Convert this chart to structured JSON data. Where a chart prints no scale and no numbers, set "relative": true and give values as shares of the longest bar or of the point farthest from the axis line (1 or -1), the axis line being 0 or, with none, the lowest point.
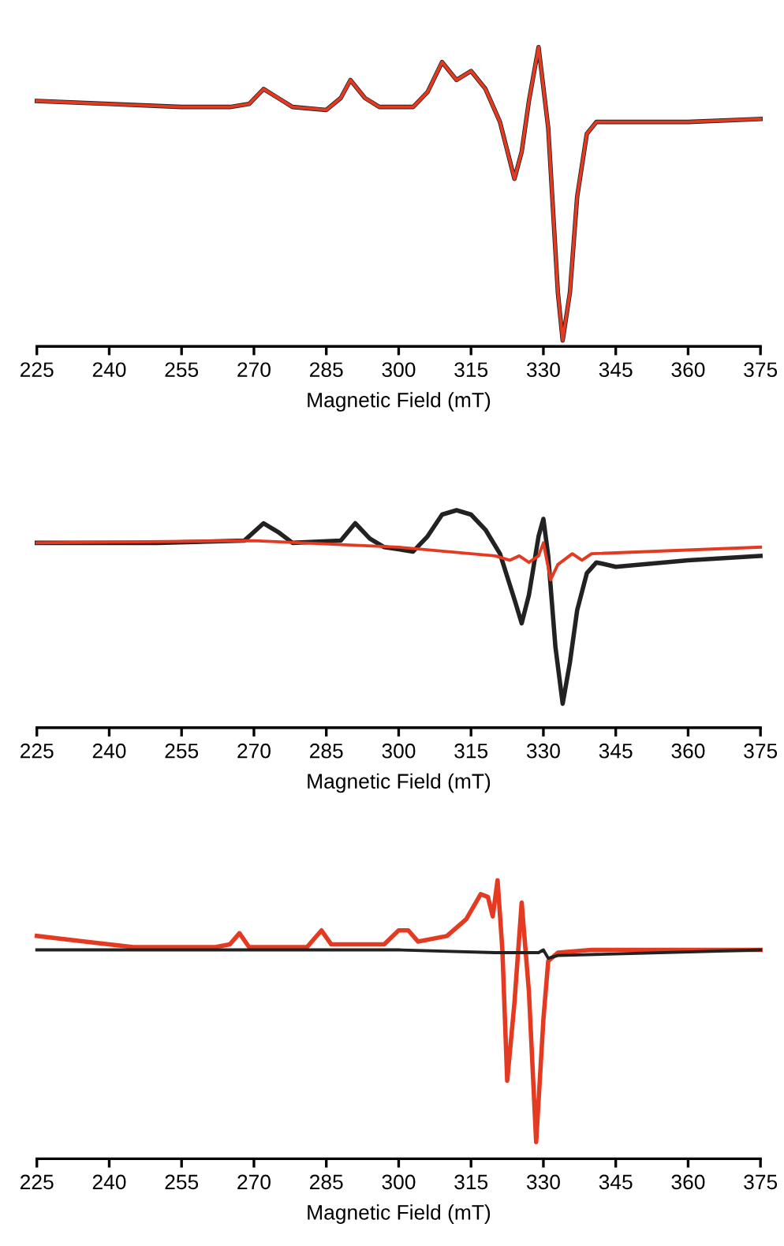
{
  "chart_data": [
    {
      "type": "line",
      "relative": true,
      "xlabel": "Magnetic Field (mT)",
      "xlim": [
        225,
        375
      ],
      "xticks": [
        225,
        240,
        255,
        270,
        285,
        300,
        315,
        330,
        345,
        360,
        375
      ],
      "tick_labels": "x",
      "series": [
        {
          "color": "#222222",
          "x": [
            225,
            240,
            255,
            265,
            269,
            272,
            275,
            278,
            285,
            288,
            290,
            293,
            296,
            303,
            306,
            309,
            312,
            315,
            318,
            321,
            324,
            325.5,
            327,
            329,
            331,
            333,
            334,
            335.5,
            337,
            339,
            341,
            345,
            360,
            375
          ],
          "values": [
            0.82,
            0.81,
            0.8,
            0.8,
            0.81,
            0.86,
            0.83,
            0.8,
            0.79,
            0.83,
            0.89,
            0.83,
            0.8,
            0.8,
            0.85,
            0.95,
            0.89,
            0.92,
            0.86,
            0.75,
            0.56,
            0.65,
            0.82,
            1.0,
            0.73,
            0.18,
            0.02,
            0.18,
            0.5,
            0.71,
            0.75,
            0.75,
            0.75,
            0.76
          ]
        },
        {
          "color": "#e53a22",
          "x": [
            225,
            240,
            255,
            265,
            269,
            272,
            275,
            278,
            285,
            288,
            290,
            293,
            296,
            303,
            306,
            309,
            312,
            315,
            318,
            321,
            324,
            325.5,
            327,
            329,
            331,
            333,
            334,
            335.5,
            337,
            339,
            341,
            345,
            360,
            375
          ],
          "values": [
            0.82,
            0.81,
            0.8,
            0.8,
            0.81,
            0.86,
            0.83,
            0.8,
            0.79,
            0.83,
            0.89,
            0.83,
            0.8,
            0.8,
            0.85,
            0.95,
            0.89,
            0.92,
            0.86,
            0.75,
            0.56,
            0.65,
            0.82,
            1.0,
            0.73,
            0.18,
            0.02,
            0.18,
            0.5,
            0.71,
            0.75,
            0.75,
            0.75,
            0.76
          ]
        }
      ]
    },
    {
      "type": "line",
      "relative": true,
      "xlabel": "Magnetic Field (mT)",
      "xlim": [
        225,
        375
      ],
      "xticks": [
        225,
        240,
        255,
        270,
        285,
        300,
        315,
        330,
        345,
        360,
        375
      ],
      "tick_labels": "x",
      "series": [
        {
          "color": "#222222",
          "x": [
            225,
            250,
            268,
            272,
            275,
            278,
            288,
            291,
            294,
            297,
            303,
            306,
            309,
            312,
            315,
            318,
            321,
            324,
            325.5,
            327,
            329,
            330,
            331,
            332.5,
            334,
            335.5,
            337,
            339,
            341,
            345,
            360,
            375
          ],
          "values": [
            0.85,
            0.85,
            0.86,
            0.94,
            0.9,
            0.85,
            0.86,
            0.94,
            0.87,
            0.83,
            0.81,
            0.88,
            0.98,
            1.0,
            0.98,
            0.91,
            0.8,
            0.59,
            0.48,
            0.61,
            0.88,
            0.96,
            0.79,
            0.37,
            0.11,
            0.3,
            0.54,
            0.71,
            0.76,
            0.74,
            0.77,
            0.79
          ]
        },
        {
          "color": "#e53a22",
          "x": [
            225,
            270,
            300,
            320,
            323,
            325,
            327,
            329,
            330,
            331.5,
            333,
            336,
            338,
            340,
            375
          ],
          "values": [
            0.85,
            0.86,
            0.83,
            0.79,
            0.77,
            0.79,
            0.76,
            0.79,
            0.85,
            0.68,
            0.75,
            0.8,
            0.77,
            0.8,
            0.83
          ]
        }
      ]
    },
    {
      "type": "line",
      "relative": true,
      "xlabel": "Magnetic Field (mT)",
      "xlim": [
        225,
        375
      ],
      "xticks": [
        225,
        240,
        255,
        270,
        285,
        300,
        315,
        330,
        345,
        360,
        375
      ],
      "tick_labels": "x",
      "series": [
        {
          "color": "#e53a22",
          "x": [
            225,
            235,
            245,
            262,
            265,
            267,
            269,
            281,
            284,
            286,
            297,
            300,
            302,
            304,
            310,
            314,
            317,
            318.5,
            319.5,
            320.5,
            321.5,
            322.5,
            324,
            325.5,
            327,
            328.5,
            330,
            331,
            333,
            340,
            375
          ],
          "values": [
            0.8,
            0.78,
            0.76,
            0.76,
            0.77,
            0.81,
            0.76,
            0.76,
            0.82,
            0.77,
            0.77,
            0.82,
            0.82,
            0.78,
            0.8,
            0.86,
            0.95,
            0.94,
            0.87,
            1.0,
            0.75,
            0.28,
            0.56,
            0.92,
            0.6,
            0.06,
            0.5,
            0.71,
            0.74,
            0.75,
            0.75
          ]
        },
        {
          "color": "#222222",
          "x": [
            225,
            300,
            320,
            329,
            330,
            331,
            333,
            375
          ],
          "values": [
            0.75,
            0.75,
            0.74,
            0.74,
            0.75,
            0.72,
            0.73,
            0.75
          ]
        }
      ]
    }
  ]
}
